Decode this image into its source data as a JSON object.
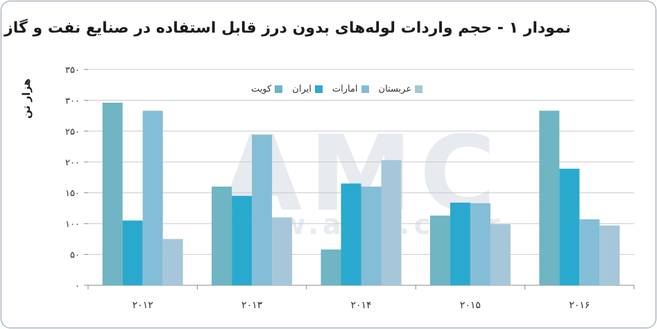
{
  "chart_data": {
    "type": "bar",
    "title": "نمودار ۱ - حجم واردات لوله‌های بدون درز قابل استفاده در صنایع نفت و گاز",
    "ylabel": "هزار تن",
    "xlabel": "",
    "ylim": [
      0,
      350
    ],
    "yticks": [
      0,
      50,
      100,
      150,
      200,
      250,
      300,
      350
    ],
    "ytick_labels": [
      "۰",
      "۵۰",
      "۱۰۰",
      "۱۵۰",
      "۲۰۰",
      "۲۵۰",
      "۳۰۰",
      "۳۵۰"
    ],
    "categories": [
      "2012",
      "2013",
      "2014",
      "2015",
      "2016"
    ],
    "category_labels": [
      "۲۰۱۲",
      "۲۰۱۳",
      "۲۰۱۴",
      "۲۰۱۵",
      "۲۰۱۶"
    ],
    "grid": true,
    "legend_position": "top",
    "series": [
      {
        "name": "کویت",
        "color": "#6fb5c3",
        "values": [
          296,
          160,
          58,
          113,
          283
        ]
      },
      {
        "name": "ایران",
        "color": "#2aa9cf",
        "values": [
          105,
          145,
          165,
          134,
          189
        ]
      },
      {
        "name": "امارات",
        "color": "#84bdd6",
        "values": [
          283,
          244,
          160,
          133,
          107
        ]
      },
      {
        "name": "عربستان",
        "color": "#a5c7d9",
        "values": [
          75,
          110,
          203,
          99,
          97
        ]
      }
    ]
  },
  "watermark": {
    "logo_text": "AMC",
    "url_text": "www.amc.co.ir"
  }
}
